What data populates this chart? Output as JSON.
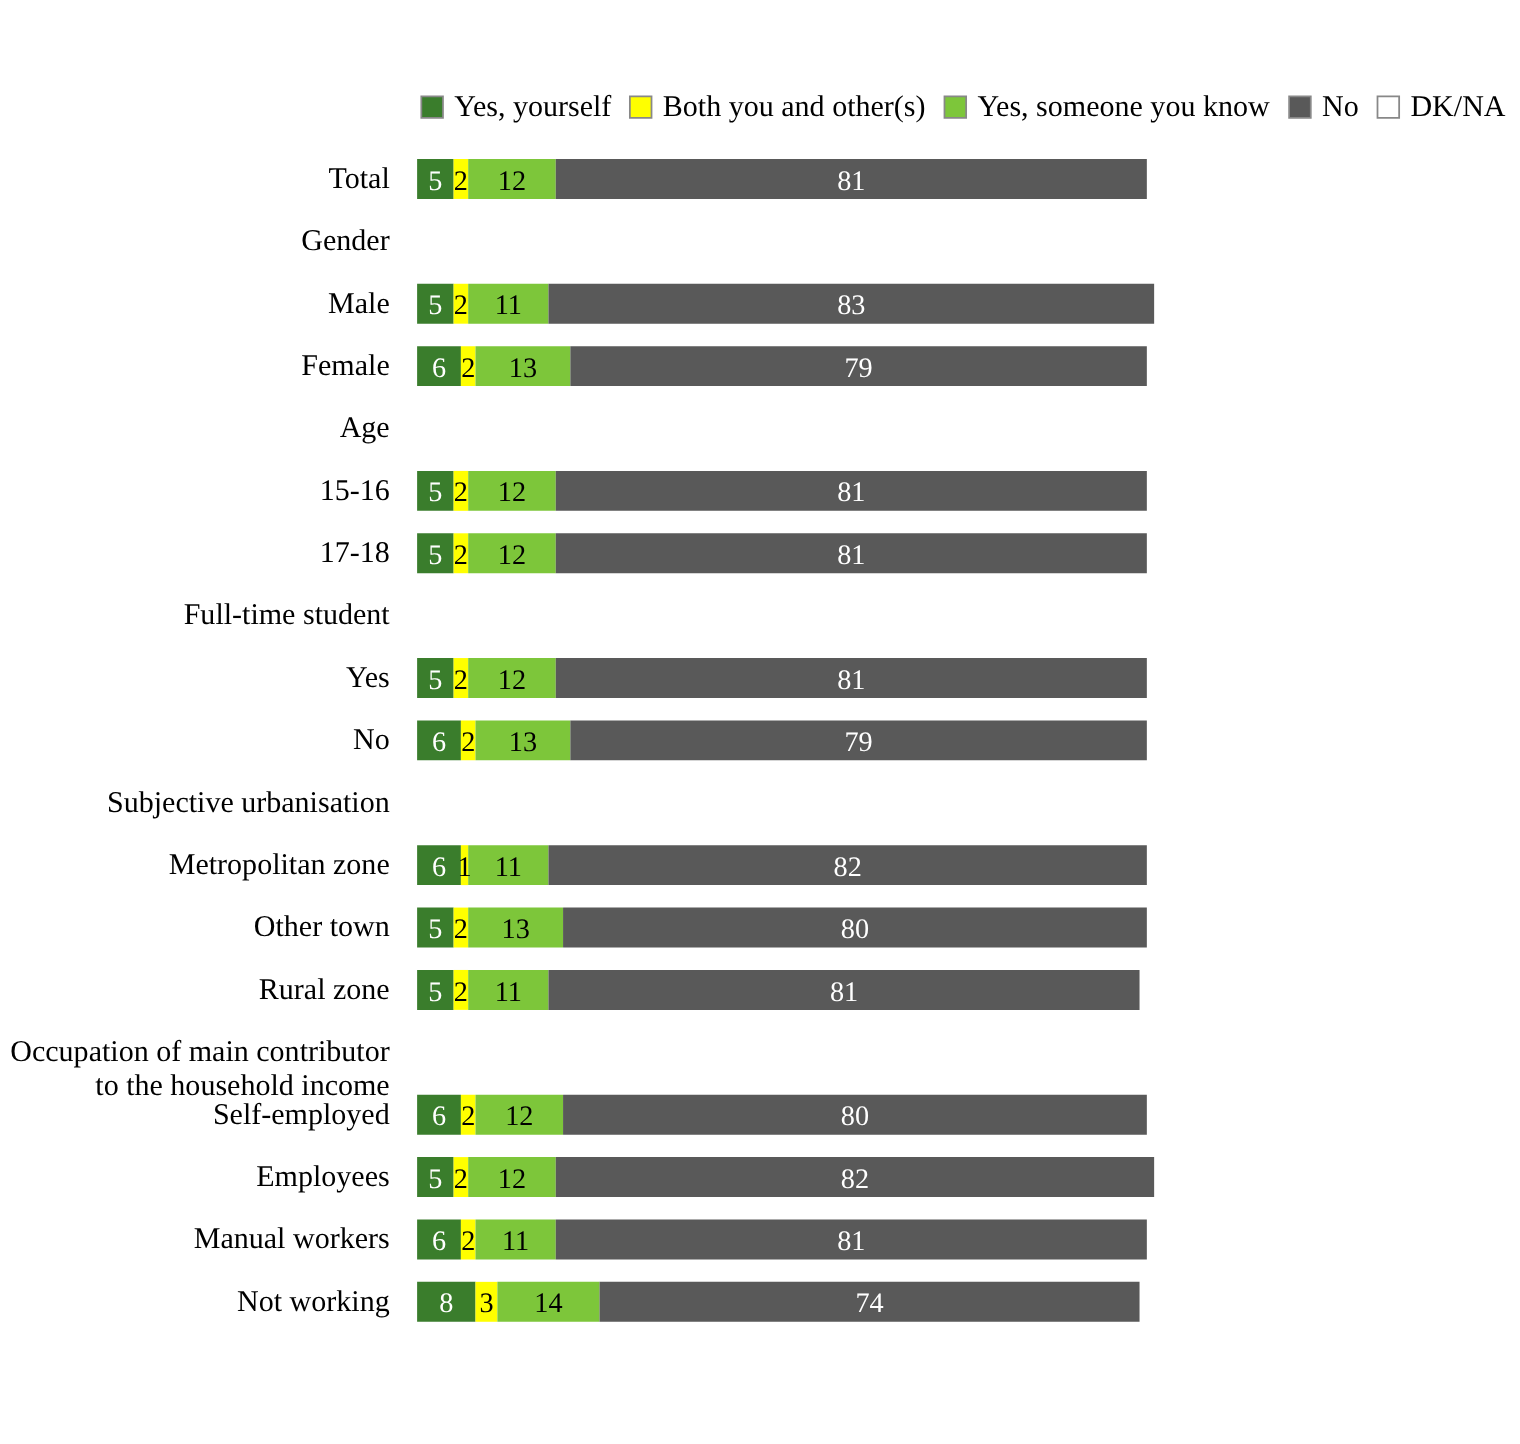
{
  "chart_data": {
    "type": "bar",
    "orientation": "horizontal",
    "stacked": true,
    "legend": "top",
    "categories": [
      "Total",
      "Gender",
      "Male",
      "Female",
      "Age",
      "15-16",
      "17-18",
      "Full-time student",
      "Yes",
      "No",
      "Subjective urbanisation",
      "Metropolitan zone",
      "Other town",
      "Rural zone",
      "Occupation of main contributor to the household income",
      "Self-employed",
      "Employees",
      "Manual workers",
      "Not working"
    ],
    "series": [
      {
        "name": "Yes, yourself",
        "color": "#3a7d2c",
        "values": [
          5,
          null,
          5,
          6,
          null,
          5,
          5,
          null,
          5,
          6,
          null,
          6,
          5,
          5,
          null,
          6,
          5,
          6,
          8
        ],
        "value_labels": [
          "5",
          null,
          "5",
          "6",
          null,
          "5",
          "5",
          null,
          "5",
          "6",
          null,
          "6",
          "5",
          "5",
          null,
          "6",
          "5",
          "6",
          "8"
        ]
      },
      {
        "name": "Both you and other(s)",
        "color": "#ffff00",
        "values": [
          2,
          null,
          2,
          2,
          null,
          2,
          2,
          null,
          2,
          2,
          null,
          1,
          2,
          2,
          null,
          2,
          2,
          2,
          3
        ],
        "value_labels": [
          "2",
          null,
          "2",
          "2",
          null,
          "2",
          "2",
          null,
          "2",
          "2",
          null,
          "1",
          "2",
          "2",
          null,
          "2",
          "2",
          "2",
          "3"
        ]
      },
      {
        "name": "Yes, someone you know",
        "color": "#7dc63a",
        "values": [
          12,
          null,
          11,
          13,
          null,
          12,
          12,
          null,
          12,
          13,
          null,
          11,
          13,
          11,
          null,
          12,
          12,
          11,
          14
        ],
        "value_labels": [
          "12",
          null,
          "11",
          "13",
          null,
          "12",
          "12",
          null,
          "12",
          "13",
          null,
          "11",
          "13",
          "11",
          null,
          "12",
          "12",
          "11",
          "14"
        ]
      },
      {
        "name": "No",
        "color": "#595959",
        "values": [
          81,
          null,
          83,
          79,
          null,
          81,
          81,
          null,
          81,
          79,
          null,
          82,
          80,
          81,
          null,
          80,
          82,
          81,
          74
        ],
        "value_labels": [
          "81",
          null,
          "83",
          "79",
          null,
          "81",
          "81",
          null,
          "81",
          "79",
          null,
          "82",
          "80",
          "81",
          null,
          "80",
          "82",
          "81",
          "74"
        ]
      },
      {
        "name": "DK/NA",
        "color": "#ffffff",
        "values": [
          0,
          null,
          0,
          0,
          null,
          0,
          0,
          null,
          0,
          0,
          null,
          0,
          0,
          0,
          null,
          0,
          0,
          0,
          0
        ]
      }
    ]
  }
}
